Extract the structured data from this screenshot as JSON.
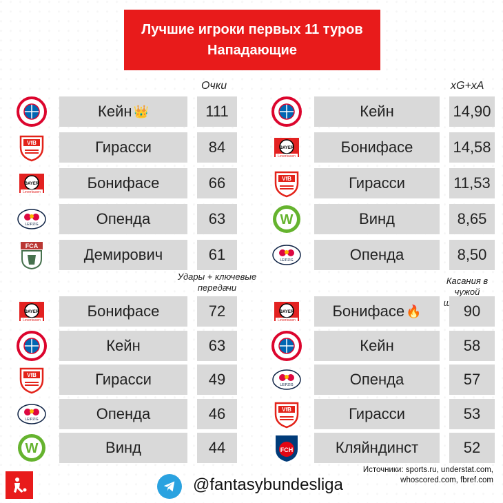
{
  "title": {
    "line1": "Лучшие игроки первых 11 туров",
    "line2": "Нападающие"
  },
  "sections": {
    "points_header": "Очки",
    "xgxa_header": "xG+xA",
    "shots_header": "Удары + ключевые передачи",
    "touches_header": "Касания в чужой штрафной"
  },
  "points": [
    {
      "club": "bayern",
      "name": "Кейн",
      "value": "111",
      "badge": "👑"
    },
    {
      "club": "stuttgart",
      "name": "Гирасси",
      "value": "84"
    },
    {
      "club": "leverkusen",
      "name": "Бонифасе",
      "value": "66"
    },
    {
      "club": "leipzig",
      "name": "Опенда",
      "value": "63"
    },
    {
      "club": "augsburg",
      "name": "Демирович",
      "value": "61"
    }
  ],
  "xgxa": [
    {
      "club": "bayern",
      "name": "Кейн",
      "value": "14,90"
    },
    {
      "club": "leverkusen",
      "name": "Бонифасе",
      "value": "14,58"
    },
    {
      "club": "stuttgart",
      "name": "Гирасси",
      "value": "11,53"
    },
    {
      "club": "wolfsburg",
      "name": "Винд",
      "value": "8,65"
    },
    {
      "club": "leipzig",
      "name": "Опенда",
      "value": "8,50"
    }
  ],
  "shots": [
    {
      "club": "leverkusen",
      "name": "Бонифасе",
      "value": "72"
    },
    {
      "club": "bayern",
      "name": "Кейн",
      "value": "63"
    },
    {
      "club": "stuttgart",
      "name": "Гирасси",
      "value": "49"
    },
    {
      "club": "leipzig",
      "name": "Опенда",
      "value": "46"
    },
    {
      "club": "wolfsburg",
      "name": "Винд",
      "value": "44"
    }
  ],
  "touches": [
    {
      "club": "leverkusen",
      "name": "Бонифасе",
      "value": "90",
      "badge": "🔥"
    },
    {
      "club": "bayern",
      "name": "Кейн",
      "value": "58"
    },
    {
      "club": "leipzig",
      "name": "Опенда",
      "value": "57"
    },
    {
      "club": "stuttgart",
      "name": "Гирасси",
      "value": "53"
    },
    {
      "club": "heidenheim",
      "name": "Кляйндинст",
      "value": "52"
    }
  ],
  "sources": "Источники: sports.ru, understat.com, whoscored.com, fbref.com",
  "handle": "@fantasybundesliga",
  "colors": {
    "accent": "#e81b1b",
    "box": "#d9d9d9",
    "telegram": "#2aa2e0"
  }
}
